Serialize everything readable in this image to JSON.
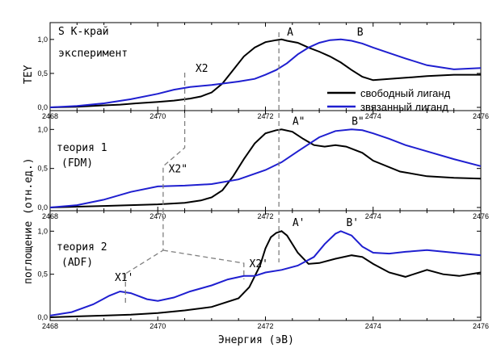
{
  "figure": {
    "xlabel": "Энергия (эВ)",
    "ylabel_top": "TEY",
    "ylabel_main": "поглощение (отн.ед.)",
    "x_ticks": [
      "2468",
      "2470",
      "2472",
      "2474",
      "2476"
    ],
    "y_ticks": [
      "0,0",
      "0,5",
      "1,0"
    ],
    "colors": {
      "free": "#000000",
      "bound": "#1f1fd0",
      "dash": "#808080"
    }
  },
  "chart_data": [
    {
      "type": "line",
      "title": "S K-край",
      "subtitle": "эксперимент",
      "ylabel": "TEY",
      "xlim": [
        2468,
        2476
      ],
      "ylim": [
        0,
        1.2
      ],
      "annotations": [
        {
          "label": "A",
          "x": 2472.4,
          "y": 1.06
        },
        {
          "label": "B",
          "x": 2473.7,
          "y": 1.06
        },
        {
          "label": "X2",
          "x": 2470.7,
          "y": 0.52
        }
      ],
      "legend": [
        "свободный лиганд",
        "звязанный лиганд"
      ],
      "series": [
        {
          "name": "свободный лиганд",
          "color": "#000000",
          "x": [
            2468.0,
            2468.5,
            2469.0,
            2469.3,
            2469.6,
            2470.0,
            2470.3,
            2470.6,
            2470.8,
            2471.0,
            2471.2,
            2471.4,
            2471.6,
            2471.8,
            2472.0,
            2472.2,
            2472.3,
            2472.4,
            2472.6,
            2472.8,
            2473.0,
            2473.2,
            2473.4,
            2473.6,
            2473.8,
            2474.0,
            2474.5,
            2475.0,
            2475.5,
            2476.0
          ],
          "y": [
            0.0,
            0.01,
            0.03,
            0.04,
            0.06,
            0.08,
            0.1,
            0.13,
            0.16,
            0.22,
            0.35,
            0.55,
            0.75,
            0.88,
            0.96,
            0.99,
            1.0,
            0.98,
            0.95,
            0.88,
            0.82,
            0.75,
            0.66,
            0.55,
            0.45,
            0.4,
            0.43,
            0.46,
            0.48,
            0.48
          ]
        },
        {
          "name": "звязанный лиганд",
          "color": "#1f1fd0",
          "x": [
            2468.0,
            2468.5,
            2469.0,
            2469.5,
            2470.0,
            2470.3,
            2470.6,
            2471.0,
            2471.5,
            2471.8,
            2472.0,
            2472.2,
            2472.4,
            2472.6,
            2472.8,
            2473.0,
            2473.2,
            2473.4,
            2473.6,
            2473.8,
            2474.0,
            2474.3,
            2474.6,
            2475.0,
            2475.5,
            2476.0
          ],
          "y": [
            0.0,
            0.02,
            0.06,
            0.12,
            0.2,
            0.26,
            0.3,
            0.33,
            0.38,
            0.42,
            0.48,
            0.55,
            0.65,
            0.78,
            0.88,
            0.95,
            0.99,
            1.0,
            0.98,
            0.94,
            0.88,
            0.8,
            0.72,
            0.62,
            0.56,
            0.58
          ]
        }
      ]
    },
    {
      "type": "line",
      "title": "теория 1",
      "subtitle": "(FDM)",
      "xlim": [
        2468,
        2476
      ],
      "ylim": [
        0,
        1.2
      ],
      "annotations": [
        {
          "label": "A\"",
          "x": 2472.5,
          "y": 1.06
        },
        {
          "label": "B\"",
          "x": 2473.6,
          "y": 1.06
        },
        {
          "label": "X2\"",
          "x": 2470.2,
          "y": 0.45
        }
      ],
      "series": [
        {
          "name": "свободный лиганд",
          "color": "#000000",
          "x": [
            2468.0,
            2468.5,
            2469.0,
            2469.5,
            2470.0,
            2470.5,
            2470.8,
            2471.0,
            2471.2,
            2471.4,
            2471.6,
            2471.8,
            2472.0,
            2472.2,
            2472.3,
            2472.5,
            2472.7,
            2472.9,
            2473.1,
            2473.3,
            2473.5,
            2473.8,
            2474.0,
            2474.5,
            2475.0,
            2475.5,
            2476.0
          ],
          "y": [
            0.0,
            0.01,
            0.02,
            0.03,
            0.04,
            0.06,
            0.09,
            0.13,
            0.22,
            0.4,
            0.62,
            0.82,
            0.95,
            0.99,
            1.0,
            0.97,
            0.88,
            0.8,
            0.78,
            0.8,
            0.78,
            0.7,
            0.6,
            0.46,
            0.4,
            0.38,
            0.37
          ]
        },
        {
          "name": "звязанный лиганд",
          "color": "#1f1fd0",
          "x": [
            2468.0,
            2468.5,
            2469.0,
            2469.5,
            2470.0,
            2470.5,
            2471.0,
            2471.5,
            2472.0,
            2472.3,
            2472.6,
            2473.0,
            2473.3,
            2473.6,
            2473.8,
            2474.0,
            2474.3,
            2474.6,
            2475.0,
            2475.5,
            2476.0
          ],
          "y": [
            0.0,
            0.03,
            0.1,
            0.2,
            0.27,
            0.28,
            0.3,
            0.36,
            0.48,
            0.58,
            0.72,
            0.9,
            0.98,
            1.0,
            0.99,
            0.95,
            0.88,
            0.8,
            0.72,
            0.62,
            0.53
          ]
        }
      ]
    },
    {
      "type": "line",
      "title": "теория 2",
      "subtitle": "(ADF)",
      "xlim": [
        2468,
        2476
      ],
      "ylim": [
        0,
        1.2
      ],
      "annotations": [
        {
          "label": "A'",
          "x": 2472.5,
          "y": 1.06
        },
        {
          "label": "B'",
          "x": 2473.5,
          "y": 1.06
        },
        {
          "label": "X1'",
          "x": 2469.2,
          "y": 0.42
        },
        {
          "label": "X2'",
          "x": 2471.7,
          "y": 0.58
        }
      ],
      "series": [
        {
          "name": "свободный лиганд",
          "color": "#000000",
          "x": [
            2468.0,
            2468.5,
            2469.0,
            2469.5,
            2470.0,
            2470.5,
            2471.0,
            2471.5,
            2471.7,
            2471.9,
            2472.0,
            2472.1,
            2472.2,
            2472.3,
            2472.4,
            2472.6,
            2472.8,
            2473.0,
            2473.3,
            2473.6,
            2473.8,
            2474.0,
            2474.3,
            2474.6,
            2475.0,
            2475.3,
            2475.6,
            2476.0
          ],
          "y": [
            0.0,
            0.01,
            0.02,
            0.03,
            0.05,
            0.08,
            0.12,
            0.22,
            0.35,
            0.6,
            0.8,
            0.93,
            0.98,
            1.0,
            0.95,
            0.75,
            0.62,
            0.63,
            0.68,
            0.72,
            0.7,
            0.62,
            0.52,
            0.47,
            0.55,
            0.5,
            0.48,
            0.52
          ]
        },
        {
          "name": "звязанный лиганд",
          "color": "#1f1fd0",
          "x": [
            2468.0,
            2468.4,
            2468.8,
            2469.1,
            2469.3,
            2469.5,
            2469.8,
            2470.0,
            2470.3,
            2470.6,
            2471.0,
            2471.3,
            2471.6,
            2471.8,
            2472.0,
            2472.3,
            2472.6,
            2472.9,
            2473.1,
            2473.3,
            2473.4,
            2473.6,
            2473.8,
            2474.0,
            2474.3,
            2474.6,
            2475.0,
            2475.5,
            2476.0
          ],
          "y": [
            0.02,
            0.06,
            0.15,
            0.25,
            0.3,
            0.28,
            0.21,
            0.19,
            0.23,
            0.3,
            0.37,
            0.44,
            0.48,
            0.48,
            0.52,
            0.55,
            0.6,
            0.7,
            0.85,
            0.97,
            1.0,
            0.95,
            0.82,
            0.75,
            0.74,
            0.76,
            0.78,
            0.75,
            0.72
          ]
        }
      ]
    }
  ]
}
